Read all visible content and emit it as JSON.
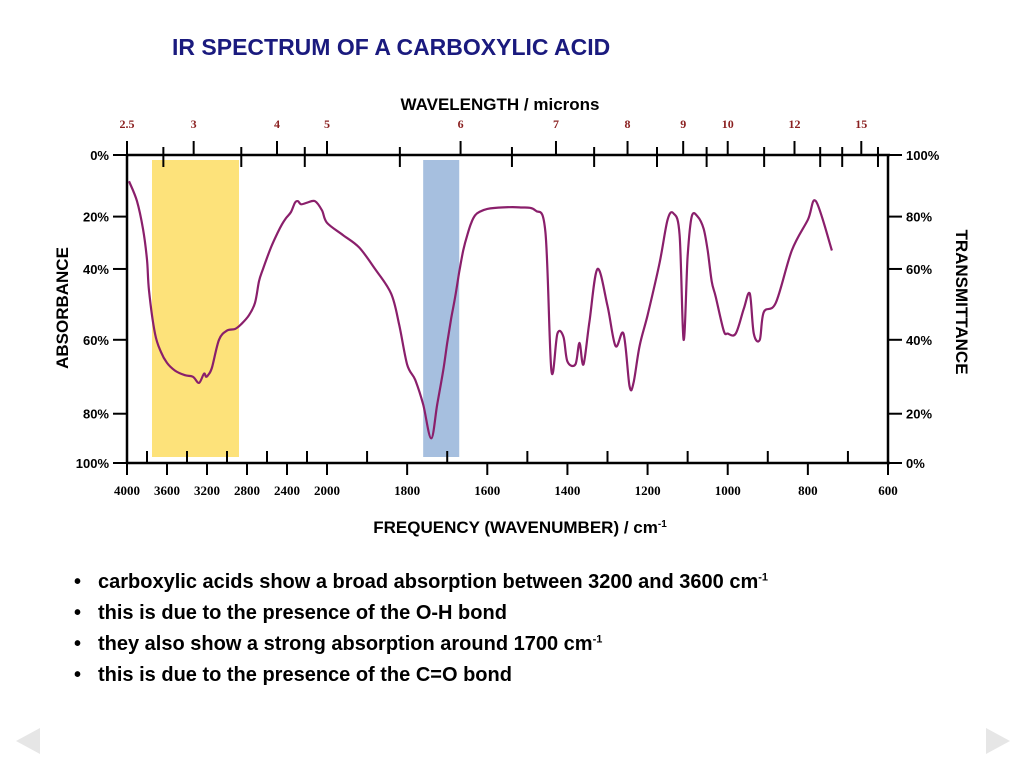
{
  "slide": {
    "title": "IR SPECTRUM OF A CARBOXYLIC ACID",
    "bullets": [
      {
        "text": "carboxylic acids show a broad absorption between 3200 and 3600 cm",
        "sup": "-1"
      },
      {
        "text": "this is due to the presence of the O-H bond",
        "sup": ""
      },
      {
        "text": "they also show a strong absorption around 1700 cm",
        "sup": "-1"
      },
      {
        "text": "this is due to the presence of the C=O bond",
        "sup": ""
      }
    ],
    "nav": {
      "prev_icon": "triangle-left-icon",
      "next_icon": "triangle-right-icon",
      "color": "#e6e6e6"
    }
  },
  "chart_data": {
    "type": "line",
    "title": "",
    "xlabel": "FREQUENCY (WAVENUMBER) / cm",
    "xlabel_sup": "-1",
    "top_axis_label": "WAVELENGTH / microns",
    "ylabel_left": "ABSORBANCE",
    "ylabel_right": "TRANSMITTANCE",
    "xlim": [
      4000,
      600
    ],
    "x_ticks": [
      "4000",
      "3600",
      "3200",
      "2800",
      "2400",
      "2000",
      "1800",
      "1600",
      "1400",
      "1200",
      "1000",
      "800",
      "600"
    ],
    "top_ticks": [
      "2.5",
      "3",
      "4",
      "5",
      "6",
      "7",
      "8",
      "9",
      "10",
      "12",
      "15"
    ],
    "left_ticks": [
      "0%",
      "20%",
      "40%",
      "60%",
      "80%",
      "100%"
    ],
    "right_ticks": [
      "100%",
      "80%",
      "60%",
      "40%",
      "20%",
      "0%"
    ],
    "highlights": [
      {
        "from": 3750,
        "to": 2880,
        "color": "#fde27a"
      },
      {
        "from": 1760,
        "to": 1670,
        "color": "#a6bfdf"
      }
    ],
    "series": [
      {
        "color": "#8a1f6b",
        "x": [
          3980,
          3900,
          3840,
          3800,
          3780,
          3720,
          3660,
          3600,
          3520,
          3420,
          3340,
          3280,
          3230,
          3210,
          3190,
          3150,
          3080,
          3000,
          2920,
          2860,
          2780,
          2720,
          2680,
          2640,
          2560,
          2490,
          2450,
          2410,
          2360,
          2320,
          2290,
          2260,
          2200,
          2120,
          2050,
          2000,
          1960,
          1920,
          1880,
          1840,
          1820,
          1800,
          1780,
          1760,
          1740,
          1725,
          1710,
          1700,
          1690,
          1680,
          1670,
          1660,
          1650,
          1640,
          1630,
          1620,
          1600,
          1560,
          1520,
          1480,
          1455,
          1440,
          1425,
          1410,
          1400,
          1380,
          1370,
          1360,
          1345,
          1325,
          1300,
          1280,
          1260,
          1245,
          1235,
          1220,
          1200,
          1170,
          1150,
          1135,
          1120,
          1110,
          1100,
          1090,
          1075,
          1060,
          1050,
          1040,
          1030,
          1010,
          1000,
          980,
          960,
          945,
          935,
          920,
          910,
          880,
          840,
          800,
          780,
          740
        ],
        "y": [
          8.5,
          15,
          24,
          34,
          44,
          58,
          64,
          67.5,
          70,
          71.5,
          72,
          74,
          71,
          72,
          71.5,
          69,
          60,
          57,
          56.5,
          55,
          52,
          48,
          41,
          37,
          30,
          25,
          22.5,
          20.5,
          18.5,
          15.5,
          15,
          16,
          15.5,
          15,
          18,
          22,
          26,
          30,
          37,
          45,
          55,
          68,
          73,
          81,
          92,
          81,
          70,
          61,
          53,
          46,
          38,
          31,
          26,
          22,
          19.5,
          18.5,
          17.5,
          17,
          17,
          18,
          25,
          70,
          58,
          59,
          67,
          68,
          61,
          68,
          54,
          37,
          49,
          62,
          58,
          75,
          74,
          62,
          52,
          35,
          21,
          19,
          26,
          60,
          33,
          20,
          20,
          24,
          31,
          41,
          46,
          57,
          58,
          58,
          50,
          45,
          58,
          60,
          51,
          48,
          31,
          21,
          15,
          31
        ]
      }
    ]
  }
}
